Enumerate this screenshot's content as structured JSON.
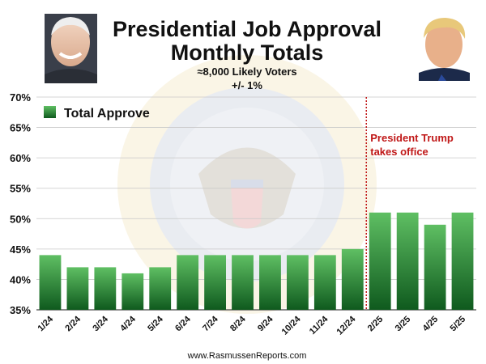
{
  "chart_data": {
    "type": "bar",
    "title_line1": "Presidential Job Approval",
    "title_line2": "Monthly Totals",
    "subtitle_line1": "≈8,000 Likely Voters",
    "subtitle_line2": "+/- 1%",
    "categories": [
      "1/24",
      "2/24",
      "3/24",
      "4/24",
      "5/24",
      "6/24",
      "7/24",
      "8/24",
      "9/24",
      "10/24",
      "11/24",
      "12/24",
      "2/25",
      "3/25",
      "4/25",
      "5/25"
    ],
    "series": [
      {
        "name": "Total Approve",
        "values": [
          44,
          42,
          42,
          41,
          42,
          44,
          44,
          44,
          44,
          44,
          44,
          45,
          51,
          51,
          49,
          51
        ]
      }
    ],
    "ylim": [
      35,
      70
    ],
    "yticks": [
      35,
      40,
      45,
      50,
      55,
      60,
      65,
      70
    ],
    "ytick_labels": [
      "35%",
      "40%",
      "45%",
      "50%",
      "55%",
      "60%",
      "65%",
      "70%"
    ],
    "grid": true,
    "legend_placement": "top-left",
    "annotation": {
      "line1": "President Trump",
      "line2": "takes office",
      "between_categories": [
        "12/24",
        "2/25"
      ]
    },
    "footer": "www.RasmussenReports.com",
    "colors": {
      "bar_top": "#5fbf63",
      "bar_bottom": "#0f5a1e",
      "annotation": "#c01818"
    }
  }
}
